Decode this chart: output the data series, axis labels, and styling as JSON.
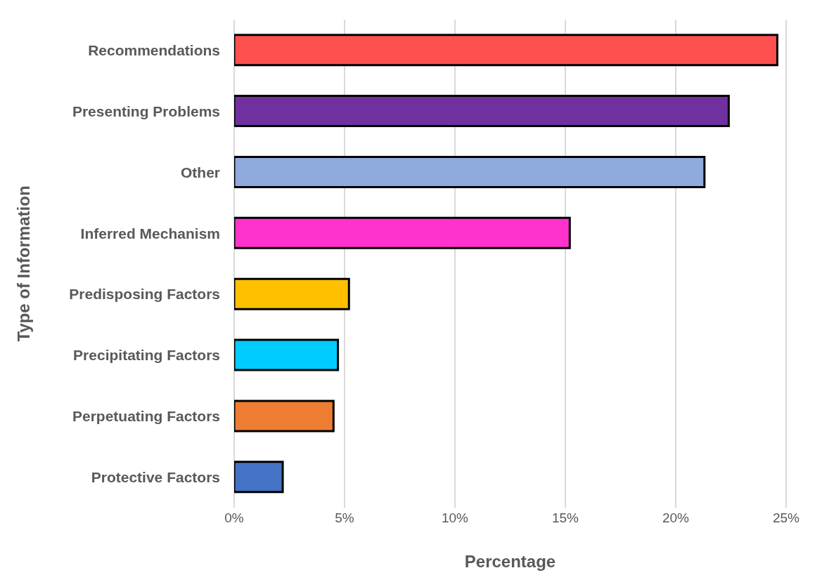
{
  "chart_data": {
    "type": "bar",
    "orientation": "horizontal",
    "xlabel": "Percentage",
    "ylabel": "Type of Information",
    "categories": [
      "Recommendations",
      "Presenting Problems",
      "Other",
      "Inferred Mechanism",
      "Predisposing Factors",
      "Precipitating Factors",
      "Perpetuating Factors",
      "Protective Factors"
    ],
    "values": [
      24.6,
      22.4,
      21.3,
      15.2,
      5.2,
      4.7,
      4.5,
      2.2
    ],
    "colors": [
      "#ff5050",
      "#7030a0",
      "#8faadc",
      "#ff33cc",
      "#ffc000",
      "#00ccff",
      "#ed7d31",
      "#4472c4"
    ],
    "xlim": [
      0,
      25
    ],
    "xticks": [
      {
        "value": 0,
        "label": "0%"
      },
      {
        "value": 5,
        "label": "5%"
      },
      {
        "value": 10,
        "label": "10%"
      },
      {
        "value": 15,
        "label": "15%"
      },
      {
        "value": 20,
        "label": "20%"
      },
      {
        "value": 25,
        "label": "25%"
      }
    ],
    "grid": "x"
  }
}
